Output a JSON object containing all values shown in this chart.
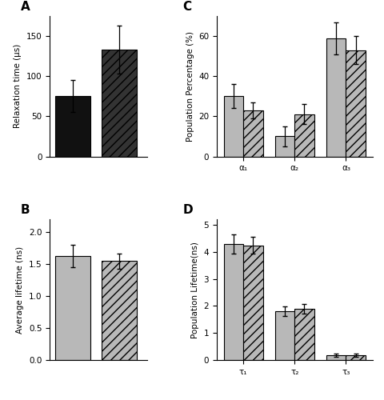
{
  "A": {
    "values": [
      75,
      133
    ],
    "errors": [
      20,
      30
    ],
    "ylabel": "Relaxation time (μs)",
    "ylim": [
      0,
      175
    ],
    "yticks": [
      0,
      50,
      100,
      150
    ]
  },
  "B": {
    "values": [
      1.63,
      1.55
    ],
    "errors": [
      0.18,
      0.12
    ],
    "ylabel": "Average lifetime (ns)",
    "ylim": [
      0.0,
      2.2
    ],
    "yticks": [
      0.0,
      0.5,
      1.0,
      1.5,
      2.0
    ]
  },
  "C": {
    "categories": [
      "α₁",
      "α₂",
      "α₃"
    ],
    "values_solid": [
      30,
      10,
      59
    ],
    "values_hatch": [
      23,
      21,
      53
    ],
    "errors_solid": [
      6,
      5,
      8
    ],
    "errors_hatch": [
      4,
      5,
      7
    ],
    "ylabel": "Population Percentage (%)",
    "ylim": [
      0,
      70
    ],
    "yticks": [
      0,
      20,
      40,
      60
    ]
  },
  "D": {
    "categories": [
      "τ₁",
      "τ₂",
      "τ₃"
    ],
    "values_solid": [
      4.3,
      1.8,
      0.18
    ],
    "values_hatch": [
      4.25,
      1.9,
      0.18
    ],
    "errors_solid": [
      0.35,
      0.18,
      0.07
    ],
    "errors_hatch": [
      0.3,
      0.18,
      0.07
    ],
    "ylabel": "Population Lifetime(ns)",
    "ylim": [
      0,
      5.2
    ],
    "yticks": [
      0,
      1,
      2,
      3,
      4,
      5
    ]
  },
  "color_solid_A": "#111111",
  "color_hatch_A": "#333333",
  "color_solid": "#b8b8b8",
  "color_hatch": "#b8b8b8",
  "hatch_pattern": "///",
  "hatch_pattern_A": "///"
}
